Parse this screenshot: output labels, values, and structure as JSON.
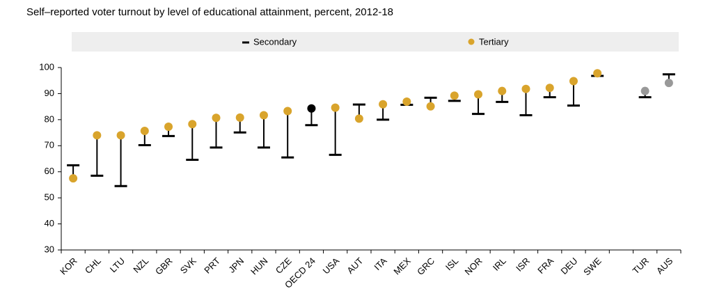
{
  "chart_data": {
    "type": "dot-range",
    "title": "Self–reported voter turnout by level of educational attainment, percent, 2012-18",
    "categories": [
      "KOR",
      "CHL",
      "LTU",
      "NZL",
      "GBR",
      "SVK",
      "PRT",
      "JPN",
      "HUN",
      "CZE",
      "OECD 24",
      "USA",
      "AUT",
      "ITA",
      "MEX",
      "GRC",
      "ISL",
      "NOR",
      "IRL",
      "ISR",
      "FRA",
      "DEU",
      "SWE",
      null,
      "TUR",
      "AUS"
    ],
    "series": [
      {
        "name": "Secondary",
        "color": "#000000",
        "marker": "dash",
        "values": [
          62.5,
          58.5,
          54.5,
          70.2,
          73.7,
          64.6,
          69.3,
          75.1,
          69.3,
          65.5,
          77.9,
          66.5,
          85.8,
          80,
          85.7,
          88.4,
          87.2,
          82.2,
          86.8,
          81.7,
          88.6,
          85.4,
          96.8,
          null,
          88.6,
          97.4
        ]
      },
      {
        "name": "Tertiary",
        "color": "#d9a42c",
        "marker": "dot",
        "point_colors": [
          null,
          null,
          null,
          null,
          null,
          null,
          null,
          null,
          null,
          null,
          "#000000",
          null,
          null,
          null,
          null,
          null,
          null,
          null,
          null,
          null,
          null,
          null,
          null,
          null,
          "#999999",
          "#999999"
        ],
        "values": [
          57.5,
          74,
          74,
          75.7,
          77.3,
          78.3,
          80.7,
          80.8,
          81.7,
          83.3,
          84.3,
          84.6,
          80.4,
          85.9,
          86.9,
          85.1,
          89.2,
          89.7,
          91,
          91.8,
          92.2,
          94.8,
          97.8,
          null,
          91,
          94.1
        ]
      }
    ],
    "ylim": [
      30,
      100
    ],
    "yticks": [
      30,
      40,
      50,
      60,
      70,
      80,
      90,
      100
    ]
  }
}
